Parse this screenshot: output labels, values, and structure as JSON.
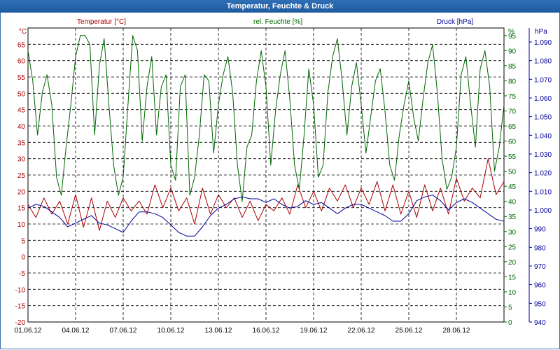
{
  "window": {
    "title": "Temperatur, Feuchte & Druck"
  },
  "colors": {
    "temperature": "#aa0000",
    "humidity": "#006600",
    "pressure": "#000099",
    "grid": "#000000",
    "title_bar": "#2766ab"
  },
  "chart_data": {
    "type": "line",
    "title": "Temperatur, Feuchte & Druck",
    "grid": true,
    "x_axis": {
      "label": "",
      "start": "01.06.12",
      "end": "30.06.12",
      "tick_labels": [
        "01.06.12",
        "04.06.12",
        "07.06.12",
        "10.06.12",
        "13.06.12",
        "16.06.12",
        "19.06.12",
        "22.06.12",
        "25.06.12",
        "28.06.12"
      ],
      "tick_days": [
        0,
        3,
        6,
        9,
        12,
        15,
        18,
        21,
        24,
        27
      ],
      "range_days": [
        0,
        30
      ]
    },
    "axes": {
      "temperature": {
        "legend": "Temperatur [°C]",
        "unit": "°C",
        "side": "left",
        "range": [
          -20,
          70
        ],
        "ticks": [
          "65",
          "60",
          "55",
          "50",
          "45",
          "40",
          "35",
          "30",
          "25",
          "20",
          "15",
          "10",
          "5",
          "0",
          "-5",
          "-10",
          "-15",
          "-20"
        ]
      },
      "humidity": {
        "legend": "rel. Feuchte [%]",
        "unit": "%",
        "side": "right-inner",
        "range": [
          0,
          97.5
        ],
        "ticks": [
          "95",
          "90",
          "85",
          "80",
          "75",
          "70",
          "65",
          "60",
          "55",
          "50",
          "45",
          "40",
          "35",
          "30",
          "25",
          "20",
          "15",
          "10",
          "5",
          "0"
        ]
      },
      "pressure": {
        "legend": "Druck [hPa]",
        "unit": "hPa",
        "side": "right-outer",
        "range": [
          940,
          1097.5
        ],
        "ticks": [
          "1.090",
          "1.080",
          "1.070",
          "1.060",
          "1.050",
          "1.040",
          "1.030",
          "1.020",
          "1.010",
          "1.000",
          "990",
          "980",
          "970",
          "960",
          "950",
          "940"
        ]
      }
    },
    "series": [
      {
        "name": "Temperatur [°C]",
        "axis": "temperature",
        "x": [
          0,
          0.5,
          1,
          1.5,
          2,
          2.5,
          3,
          3.5,
          4,
          4.5,
          5,
          5.5,
          6,
          6.5,
          7,
          7.5,
          8,
          8.5,
          9,
          9.5,
          10,
          10.5,
          11,
          11.5,
          12,
          12.5,
          13,
          13.5,
          14,
          14.5,
          15,
          15.5,
          16,
          16.5,
          17,
          17.5,
          18,
          18.5,
          19,
          19.5,
          20,
          20.5,
          21,
          21.5,
          22,
          22.5,
          23,
          23.5,
          24,
          24.5,
          25,
          25.5,
          26,
          26.5,
          27,
          27.5,
          28,
          28.5,
          29,
          29.5,
          30
        ],
        "y": [
          16,
          12,
          18,
          13,
          17,
          10,
          19,
          9,
          18,
          8,
          17,
          12,
          18,
          14,
          17,
          13,
          22,
          15,
          21,
          14,
          18,
          10,
          21,
          13,
          19,
          15,
          18,
          12,
          17,
          11,
          16,
          14,
          18,
          13,
          22,
          15,
          20,
          14,
          21,
          17,
          22,
          15,
          21,
          16,
          23,
          14,
          22,
          13,
          20,
          12,
          22,
          14,
          21,
          13,
          24,
          17,
          21,
          18,
          30,
          19,
          23
        ]
      },
      {
        "name": "rel. Feuchte [%]",
        "axis": "humidity",
        "x": [
          0,
          0.3,
          0.6,
          0.9,
          1.2,
          1.5,
          1.8,
          2.1,
          2.4,
          2.7,
          3,
          3.3,
          3.6,
          3.9,
          4.2,
          4.5,
          4.8,
          5.1,
          5.4,
          5.7,
          6,
          6.3,
          6.6,
          6.9,
          7.2,
          7.5,
          7.8,
          8.1,
          8.4,
          8.7,
          9,
          9.3,
          9.6,
          9.9,
          10.2,
          10.5,
          10.8,
          11.1,
          11.4,
          11.7,
          12,
          12.3,
          12.6,
          12.9,
          13.2,
          13.5,
          13.8,
          14.1,
          14.4,
          14.7,
          15,
          15.3,
          15.6,
          15.9,
          16.2,
          16.5,
          16.8,
          17.1,
          17.4,
          17.7,
          18,
          18.3,
          18.6,
          18.9,
          19.2,
          19.5,
          19.8,
          20.1,
          20.4,
          20.7,
          21,
          21.3,
          21.6,
          21.9,
          22.2,
          22.5,
          22.8,
          23.1,
          23.4,
          23.7,
          24,
          24.3,
          24.6,
          24.9,
          25.2,
          25.5,
          25.8,
          26.1,
          26.4,
          26.7,
          27,
          27.3,
          27.6,
          27.9,
          28.2,
          28.5,
          28.8,
          29.1,
          29.4,
          29.7,
          30
        ],
        "y": [
          90,
          80,
          62,
          76,
          82,
          72,
          48,
          42,
          58,
          72,
          88,
          95,
          95,
          92,
          62,
          85,
          94,
          72,
          52,
          42,
          48,
          72,
          95,
          90,
          60,
          78,
          88,
          62,
          78,
          82,
          52,
          47,
          78,
          82,
          42,
          48,
          62,
          82,
          80,
          56,
          72,
          82,
          88,
          76,
          52,
          40,
          58,
          62,
          80,
          90,
          78,
          52,
          70,
          82,
          90,
          74,
          52,
          44,
          62,
          84,
          72,
          48,
          52,
          76,
          88,
          94,
          80,
          62,
          78,
          86,
          72,
          56,
          68,
          80,
          84,
          70,
          52,
          47,
          62,
          72,
          80,
          68,
          60,
          74,
          86,
          92,
          76,
          54,
          44,
          48,
          58,
          82,
          88,
          72,
          58,
          84,
          90,
          78,
          50,
          58,
          72
        ]
      },
      {
        "name": "Druck [hPa]",
        "axis": "pressure",
        "x": [
          0,
          0.5,
          1,
          1.5,
          2,
          2.5,
          3,
          3.5,
          4,
          4.5,
          5,
          5.5,
          6,
          6.5,
          7,
          7.5,
          8,
          8.5,
          9,
          9.5,
          10,
          10.5,
          11,
          11.5,
          12,
          12.5,
          13,
          13.5,
          14,
          14.5,
          15,
          15.5,
          16,
          16.5,
          17,
          17.5,
          18,
          18.5,
          19,
          19.5,
          20,
          20.5,
          21,
          21.5,
          22,
          22.5,
          23,
          23.5,
          24,
          24.5,
          25,
          25.5,
          26,
          26.5,
          27,
          27.5,
          28,
          28.5,
          29,
          29.5,
          30
        ],
        "y": [
          1001,
          1003,
          1002,
          999,
          996,
          991,
          993,
          995,
          997,
          993,
          992,
          990,
          988,
          994,
          999,
          999,
          998,
          996,
          992,
          988,
          986,
          986,
          991,
          997,
          1001,
          1003,
          1006,
          1007,
          1006,
          1006,
          1004,
          1006,
          1003,
          1001,
          1002,
          1005,
          1003,
          1004,
          1001,
          998,
          1001,
          1003,
          1003,
          1001,
          999,
          997,
          994,
          994,
          998,
          1005,
          1007,
          1008,
          1005,
          1000,
          1004,
          1006,
          1004,
          1001,
          998,
          995,
          994
        ]
      }
    ]
  }
}
